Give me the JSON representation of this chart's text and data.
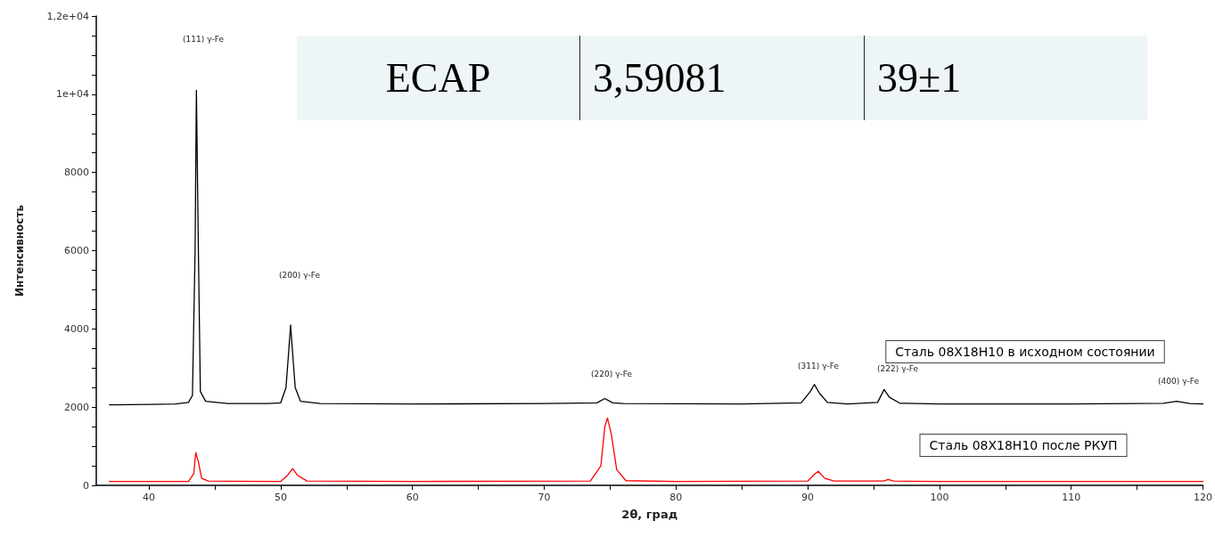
{
  "chart_data": {
    "type": "line",
    "xlabel": "2θ, град",
    "ylabel": "Интенсивность",
    "xlim": [
      36,
      120
    ],
    "xticks": [
      40,
      {
        "value": 45,
        "label": null
      },
      50,
      {
        "value": 55,
        "label": null
      },
      60,
      {
        "value": 65,
        "label": null
      },
      70,
      {
        "value": 75,
        "label": null
      },
      80,
      {
        "value": 85,
        "label": null
      },
      90,
      {
        "value": 95,
        "label": null
      },
      100,
      {
        "value": 105,
        "label": null
      },
      110,
      {
        "value": 115,
        "label": null
      },
      120
    ],
    "ylim": [
      0,
      12000
    ],
    "yticks": [
      0,
      {
        "value": 500,
        "label": null
      },
      {
        "value": 1000,
        "label": null
      },
      {
        "value": 1500,
        "label": null
      },
      2000,
      {
        "value": 2500,
        "label": null
      },
      {
        "value": 3000,
        "label": null
      },
      {
        "value": 3500,
        "label": null
      },
      4000,
      {
        "value": 4500,
        "label": null
      },
      {
        "value": 5000,
        "label": null
      },
      {
        "value": 5500,
        "label": null
      },
      6000,
      {
        "value": 6500,
        "label": null
      },
      {
        "value": 7000,
        "label": null
      },
      {
        "value": 7500,
        "label": null
      },
      8000,
      {
        "value": 8500,
        "label": null
      },
      {
        "value": 9000,
        "label": null
      },
      {
        "value": 9500,
        "label": null
      },
      {
        "value": 10000,
        "label": "1e+04"
      },
      {
        "value": 10500,
        "label": null
      },
      {
        "value": 11000,
        "label": null
      },
      {
        "value": 11500,
        "label": null
      },
      {
        "value": 12000,
        "label": "1,2e+04"
      }
    ],
    "grid": false,
    "legend": false,
    "marker": "none",
    "line_style": "solid",
    "series": [
      {
        "name": "Сталь 08Х18Н10 в исходном состоянии",
        "color": "#000000",
        "x": [
          37,
          40,
          42,
          43,
          43.3,
          43.5,
          43.6,
          43.75,
          43.9,
          44.3,
          46,
          49,
          50,
          50.4,
          50.6,
          50.75,
          50.9,
          51.1,
          51.5,
          53,
          60,
          70,
          74,
          74.6,
          75.2,
          76,
          85,
          89.5,
          90.2,
          90.5,
          90.9,
          91.5,
          93,
          95.3,
          95.8,
          96.2,
          97,
          100,
          110,
          117,
          118,
          119,
          120
        ],
        "values": [
          2060,
          2070,
          2080,
          2120,
          2300,
          6000,
          10100,
          6000,
          2400,
          2150,
          2090,
          2090,
          2110,
          2500,
          3400,
          4100,
          3400,
          2500,
          2150,
          2090,
          2080,
          2090,
          2110,
          2220,
          2110,
          2090,
          2080,
          2110,
          2400,
          2580,
          2350,
          2120,
          2080,
          2120,
          2450,
          2250,
          2100,
          2080,
          2080,
          2100,
          2150,
          2090,
          2080
        ]
      },
      {
        "name": "Сталь 08Х18Н10 после РКУП",
        "color": "#ff0000",
        "x": [
          37,
          43,
          43.4,
          43.55,
          43.75,
          44,
          44.5,
          50,
          50.5,
          50.9,
          51.3,
          52,
          60,
          73.5,
          74.3,
          74.6,
          74.8,
          75.1,
          75.5,
          76.2,
          80,
          90,
          90.5,
          90.8,
          91.3,
          92,
          95.8,
          96.1,
          96.5,
          100,
          120
        ],
        "values": [
          100,
          100,
          300,
          840,
          600,
          180,
          110,
          100,
          250,
          430,
          250,
          110,
          100,
          110,
          500,
          1500,
          1720,
          1300,
          400,
          120,
          100,
          110,
          280,
          360,
          180,
          110,
          110,
          150,
          110,
          100,
          100
        ]
      }
    ],
    "annotations": [
      "(111) γ-Fe",
      "(200) γ-Fe",
      "(220) γ-Fe",
      "(311) γ-Fe",
      "(222) γ-Fe",
      "(400) γ-Fe",
      "ECAP",
      "3,59081",
      "39±1"
    ]
  }
}
